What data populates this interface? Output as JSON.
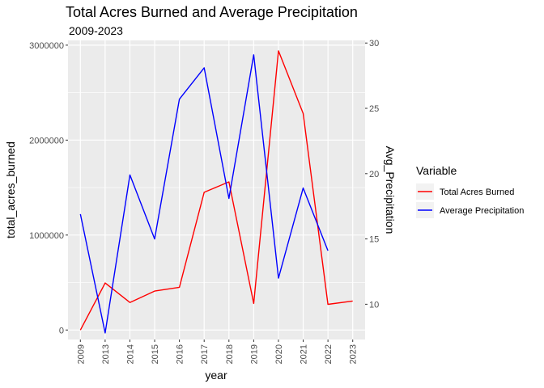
{
  "chart_data": {
    "type": "line",
    "title": "Total Acres Burned and Average Precipitation",
    "subtitle": "2009-2023",
    "xlabel": "year",
    "ylabel": "total_acres_burned",
    "y2label": "Avg_Precipitation",
    "categories": [
      "2009",
      "2013",
      "2014",
      "2015",
      "2016",
      "2017",
      "2018",
      "2019",
      "2020",
      "2021",
      "2022",
      "2023"
    ],
    "ylim": [
      -100000,
      3050000
    ],
    "y2lim": [
      7.3,
      30.2
    ],
    "yticks": [
      0,
      1000000,
      2000000,
      3000000
    ],
    "ytick_labels": [
      "0",
      "1000000",
      "2000000",
      "3000000"
    ],
    "y2ticks": [
      10,
      15,
      20,
      25,
      30
    ],
    "y2tick_labels": [
      "10",
      "15",
      "20",
      "25",
      "30"
    ],
    "series": [
      {
        "name": "Total Acres Burned",
        "axis": "left",
        "color": "#ff0000",
        "values": [
          0,
          495000,
          290000,
          410000,
          450000,
          1450000,
          1560000,
          280000,
          2940000,
          2280000,
          270000,
          305000
        ]
      },
      {
        "name": "Average Precipitation",
        "axis": "right",
        "color": "#0000ff",
        "values": [
          16.9,
          7.8,
          19.9,
          15.0,
          25.7,
          28.1,
          18.1,
          29.1,
          12.0,
          18.9,
          14.1,
          null
        ]
      }
    ],
    "legend": {
      "title": "Variable",
      "position": "right"
    },
    "grid": true,
    "panel_background": "#ebebeb",
    "grid_color": "#ffffff"
  }
}
